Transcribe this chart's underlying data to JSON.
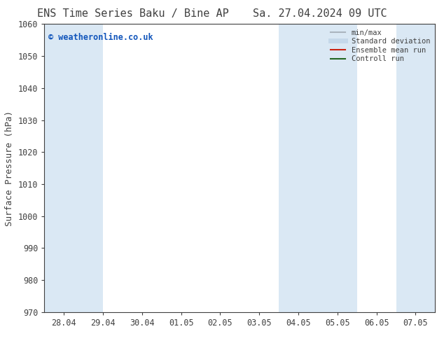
{
  "title_left": "ENS Time Series Baku / Bine AP",
  "title_right": "Sa. 27.04.2024 09 UTC",
  "ylabel": "Surface Pressure (hPa)",
  "ylim": [
    970,
    1060
  ],
  "yticks": [
    970,
    980,
    990,
    1000,
    1010,
    1020,
    1030,
    1040,
    1050,
    1060
  ],
  "x_tick_labels": [
    "28.04",
    "29.04",
    "30.04",
    "01.05",
    "02.05",
    "03.05",
    "04.05",
    "05.05",
    "06.05",
    "07.05"
  ],
  "x_tick_positions": [
    0,
    1,
    2,
    3,
    4,
    5,
    6,
    7,
    8,
    9
  ],
  "xlim": [
    -0.5,
    9.5
  ],
  "shaded_bands": [
    {
      "x_start": -0.5,
      "x_end": 1.0
    },
    {
      "x_start": 5.5,
      "x_end": 7.5
    },
    {
      "x_start": 8.5,
      "x_end": 9.5
    }
  ],
  "shade_color": "#dae8f4",
  "watermark": "© weatheronline.co.uk",
  "watermark_color": "#1155bb",
  "legend_items": [
    {
      "label": "min/max",
      "color": "#aab4be",
      "lw": 1.5,
      "style": "solid"
    },
    {
      "label": "Standard deviation",
      "color": "#c5d8ea",
      "lw": 5,
      "style": "solid"
    },
    {
      "label": "Ensemble mean run",
      "color": "#cc2211",
      "lw": 1.5,
      "style": "solid"
    },
    {
      "label": "Controll run",
      "color": "#226622",
      "lw": 1.5,
      "style": "solid"
    }
  ],
  "bg_color": "#ffffff",
  "plot_bg_color": "#ffffff",
  "spine_color": "#404040",
  "font_color": "#404040",
  "title_fontsize": 11,
  "ylabel_fontsize": 9,
  "tick_fontsize": 8.5,
  "legend_fontsize": 7.5,
  "watermark_fontsize": 8.5
}
